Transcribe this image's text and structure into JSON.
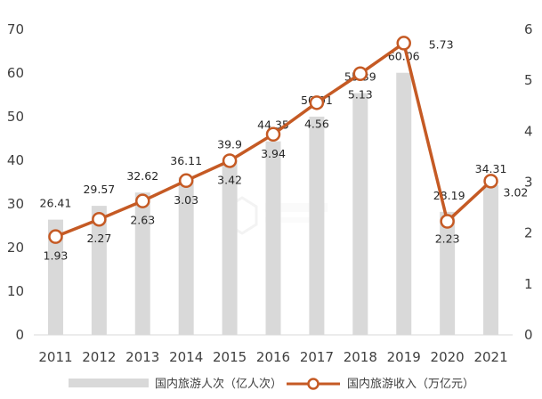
{
  "chart_data": {
    "type": "bar+line",
    "categories": [
      "2011",
      "2012",
      "2013",
      "2014",
      "2015",
      "2016",
      "2017",
      "2018",
      "2019",
      "2020",
      "2021"
    ],
    "series": [
      {
        "name": "国内旅游人次（亿人次）",
        "type": "bar",
        "axis": "left",
        "color": "#d9d9d9",
        "values": [
          26.41,
          29.57,
          32.62,
          36.11,
          39.9,
          44.35,
          50.01,
          55.39,
          60.06,
          28.19,
          34.31
        ],
        "labels": [
          "26.41",
          "29.57",
          "32.62",
          "36.11",
          "39.9",
          "44.35",
          "50.01",
          "55.39",
          "60.06",
          "28.19",
          "34.31"
        ]
      },
      {
        "name": "国内旅游收入（万亿元）",
        "type": "line",
        "axis": "right",
        "color": "#c55a24",
        "values": [
          1.93,
          2.27,
          2.63,
          3.03,
          3.42,
          3.94,
          4.56,
          5.13,
          5.73,
          2.23,
          3.02
        ],
        "labels": [
          "1.93",
          "2.27",
          "2.63",
          "3.03",
          "3.42",
          "3.94",
          "4.56",
          "5.13",
          "5.73",
          "2.23",
          "3.02"
        ]
      }
    ],
    "y_left": {
      "min": 0,
      "max": 70,
      "ticks": [
        "0",
        "10",
        "20",
        "30",
        "40",
        "50",
        "60",
        "70"
      ]
    },
    "y_right": {
      "min": 0,
      "max": 6,
      "ticks": [
        "0",
        "1",
        "2",
        "3",
        "4",
        "5",
        "6"
      ]
    },
    "legend": {
      "placement": "bottom"
    },
    "grid": false
  }
}
